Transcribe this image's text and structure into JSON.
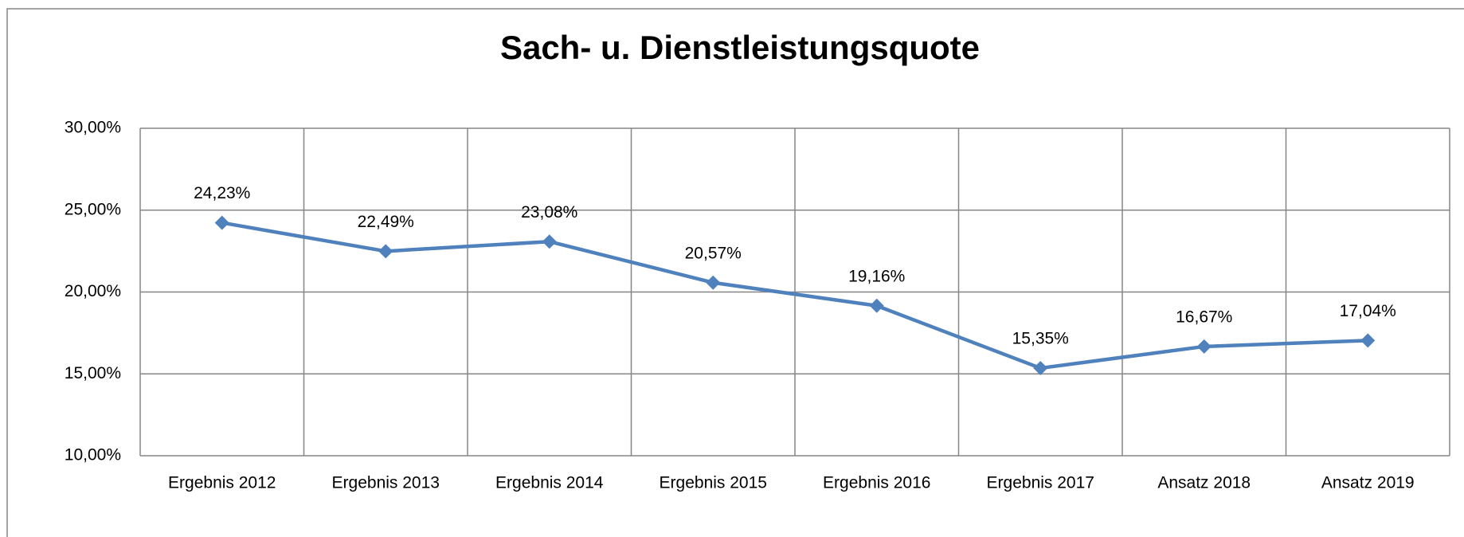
{
  "chart_data": {
    "type": "line",
    "title": "Sach- u. Dienstleistungsquote",
    "categories": [
      "Ergebnis 2012",
      "Ergebnis 2013",
      "Ergebnis 2014",
      "Ergebnis 2015",
      "Ergebnis 2016",
      "Ergebnis 2017",
      "Ansatz 2018",
      "Ansatz 2019"
    ],
    "series": [
      {
        "name": "Sach- u. Dienstleistungsquote",
        "color": "#4f81bd",
        "values": [
          24.23,
          22.49,
          23.08,
          20.57,
          19.16,
          15.35,
          16.67,
          17.04
        ],
        "value_labels": [
          "24,23%",
          "22,49%",
          "23,08%",
          "20,57%",
          "19,16%",
          "15,35%",
          "16,67%",
          "17,04%"
        ]
      }
    ],
    "ylim": [
      10,
      30
    ],
    "yticks": [
      {
        "value": 10,
        "label": "10,00%"
      },
      {
        "value": 15,
        "label": "15,00%"
      },
      {
        "value": 20,
        "label": "20,00%"
      },
      {
        "value": 25,
        "label": "25,00%"
      },
      {
        "value": 30,
        "label": "30,00%"
      }
    ],
    "grid": true
  }
}
